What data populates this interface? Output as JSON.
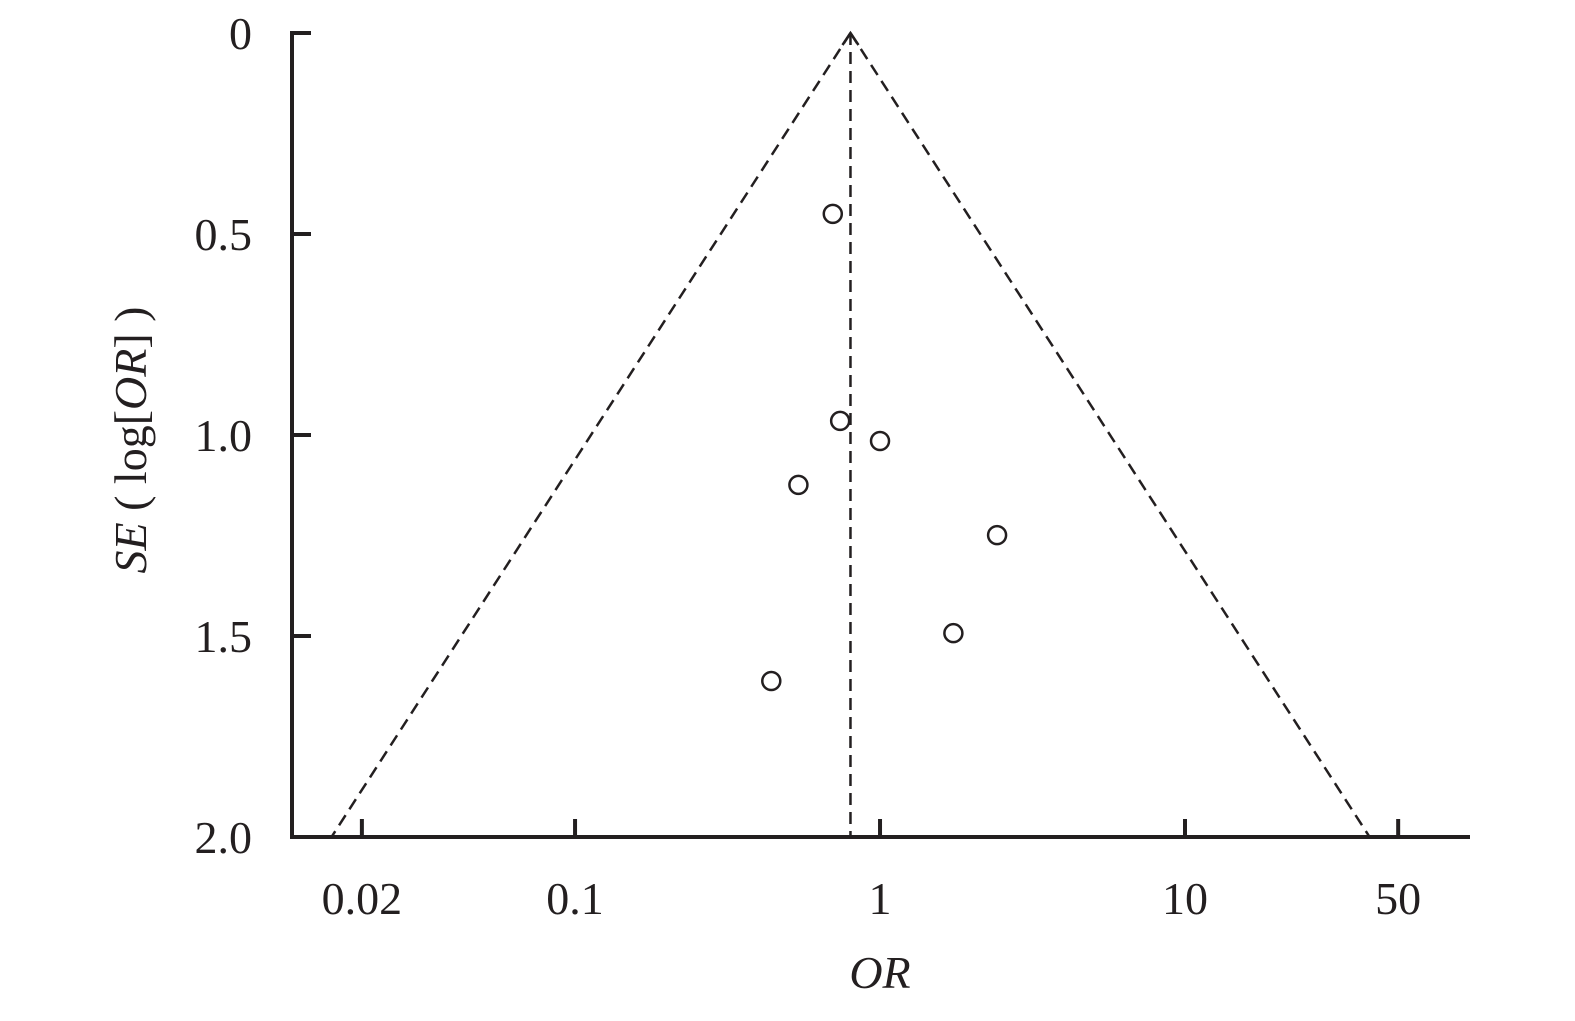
{
  "chart_data": {
    "type": "scatter",
    "xlabel": "OR",
    "ylabel_parts": [
      {
        "text": "SE",
        "italic": true
      },
      {
        "text": " ( log[",
        "italic": false
      },
      {
        "text": "OR",
        "italic": true
      },
      {
        "text": "] )",
        "italic": false
      }
    ],
    "x_log": true,
    "y_inverted": true,
    "xlim": [
      0.0118,
      86
    ],
    "ylim": [
      0,
      2
    ],
    "xticks": [
      0.02,
      0.1,
      1,
      10,
      50
    ],
    "yticks": [
      0,
      0.5,
      {
        "value": 1,
        "label": "1.0"
      },
      1.5,
      {
        "value": 2,
        "label": "2.0"
      }
    ],
    "series": [
      {
        "color": "#231f20",
        "x": [
          0.7,
          0.74,
          1.0,
          0.54,
          2.42,
          1.74,
          0.44
        ],
        "values": [
          0.45,
          0.965,
          1.015,
          1.124,
          1.249,
          1.493,
          1.612
        ]
      }
    ],
    "lines": [
      {
        "x": [
          0.8,
          0.8
        ],
        "y": [
          0,
          2
        ]
      },
      {
        "x": [
          0.8,
          0.0159
        ],
        "y": [
          0,
          2
        ]
      },
      {
        "x": [
          0.8,
          40.3
        ],
        "y": [
          0,
          2
        ]
      }
    ]
  }
}
